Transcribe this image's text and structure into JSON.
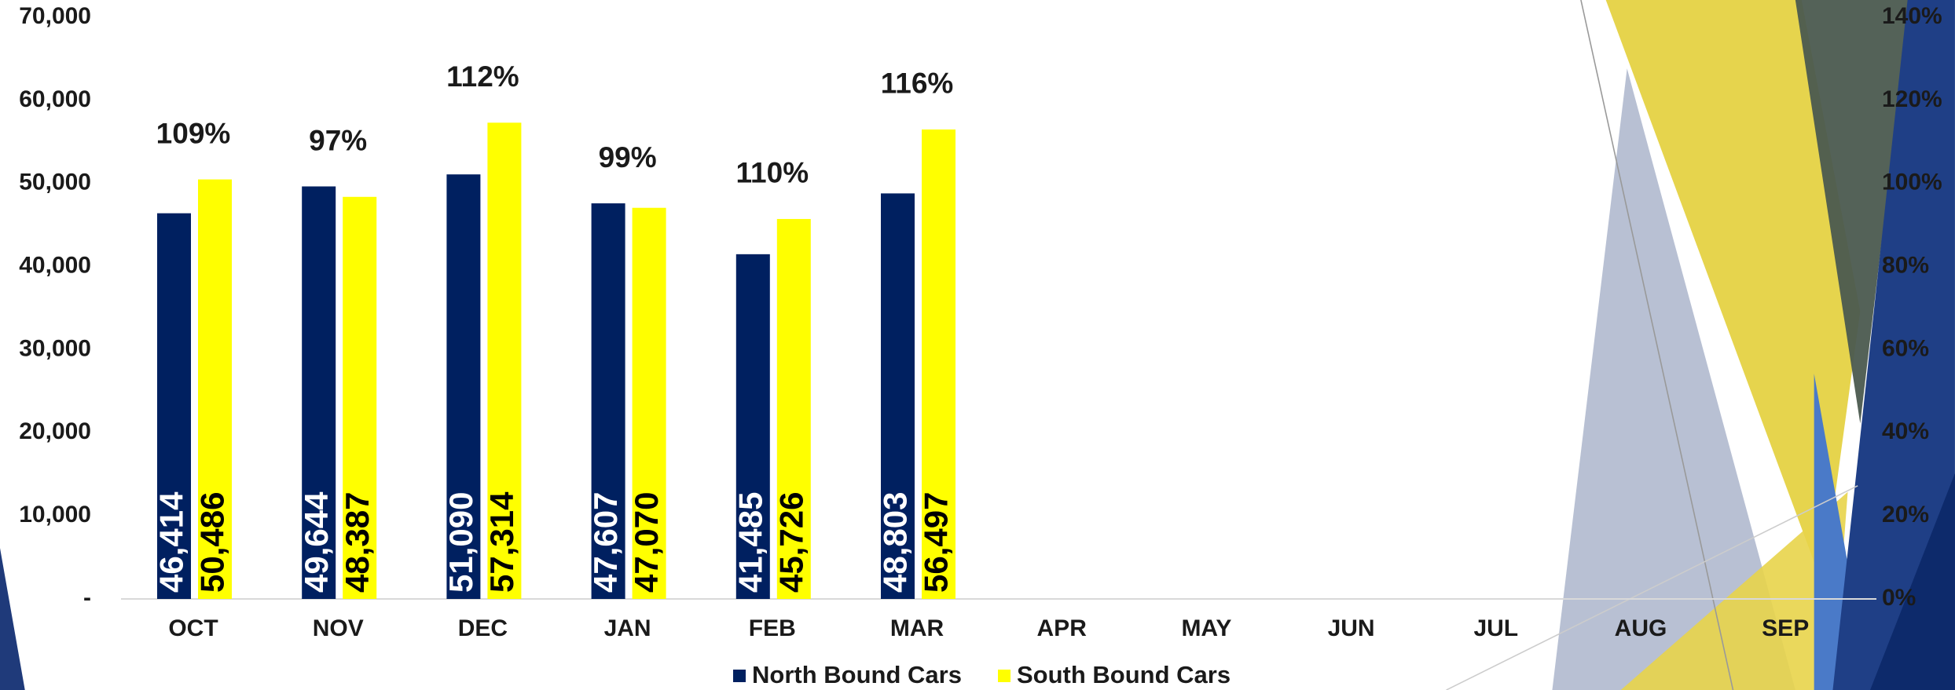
{
  "chart_data": {
    "type": "bar",
    "categories": [
      "OCT",
      "NOV",
      "DEC",
      "JAN",
      "FEB",
      "MAR",
      "APR",
      "MAY",
      "JUN",
      "JUL",
      "AUG",
      "SEP"
    ],
    "series": [
      {
        "name": "North Bound Cars",
        "color": "#002060",
        "values": [
          46414,
          49644,
          51090,
          47607,
          41485,
          48803,
          null,
          null,
          null,
          null,
          null,
          null
        ],
        "value_labels": [
          "46,414",
          "49,644",
          "51,090",
          "47,607",
          "41,485",
          "48,803",
          null,
          null,
          null,
          null,
          null,
          null
        ]
      },
      {
        "name": "South Bound Cars",
        "color": "#ffff00",
        "values": [
          50486,
          48387,
          57314,
          47070,
          45726,
          56497,
          null,
          null,
          null,
          null,
          null,
          null
        ],
        "value_labels": [
          "50,486",
          "48,387",
          "57,314",
          "47,070",
          "45,726",
          "56,497",
          null,
          null,
          null,
          null,
          null,
          null
        ]
      }
    ],
    "annotations": [
      "109%",
      "97%",
      "112%",
      "99%",
      "110%",
      "116%"
    ],
    "ylim": [
      0,
      70000
    ],
    "yticks": [
      {
        "value": 0,
        "label": "-"
      },
      {
        "value": 10000,
        "label": "10,000"
      },
      {
        "value": 20000,
        "label": "20,000"
      },
      {
        "value": 30000,
        "label": "30,000"
      },
      {
        "value": 40000,
        "label": "40,000"
      },
      {
        "value": 50000,
        "label": "50,000"
      },
      {
        "value": 60000,
        "label": "60,000"
      },
      {
        "value": 70000,
        "label": "70,000"
      }
    ],
    "y2lim": [
      0,
      140
    ],
    "y2ticks": [
      {
        "value": 0,
        "label": "0%"
      },
      {
        "value": 20,
        "label": "20%"
      },
      {
        "value": 40,
        "label": "40%"
      },
      {
        "value": 60,
        "label": "60%"
      },
      {
        "value": 80,
        "label": "80%"
      },
      {
        "value": 100,
        "label": "100%"
      },
      {
        "value": 120,
        "label": "120%"
      },
      {
        "value": 140,
        "label": "140%"
      }
    ],
    "legend": "bottom",
    "grid": false
  }
}
